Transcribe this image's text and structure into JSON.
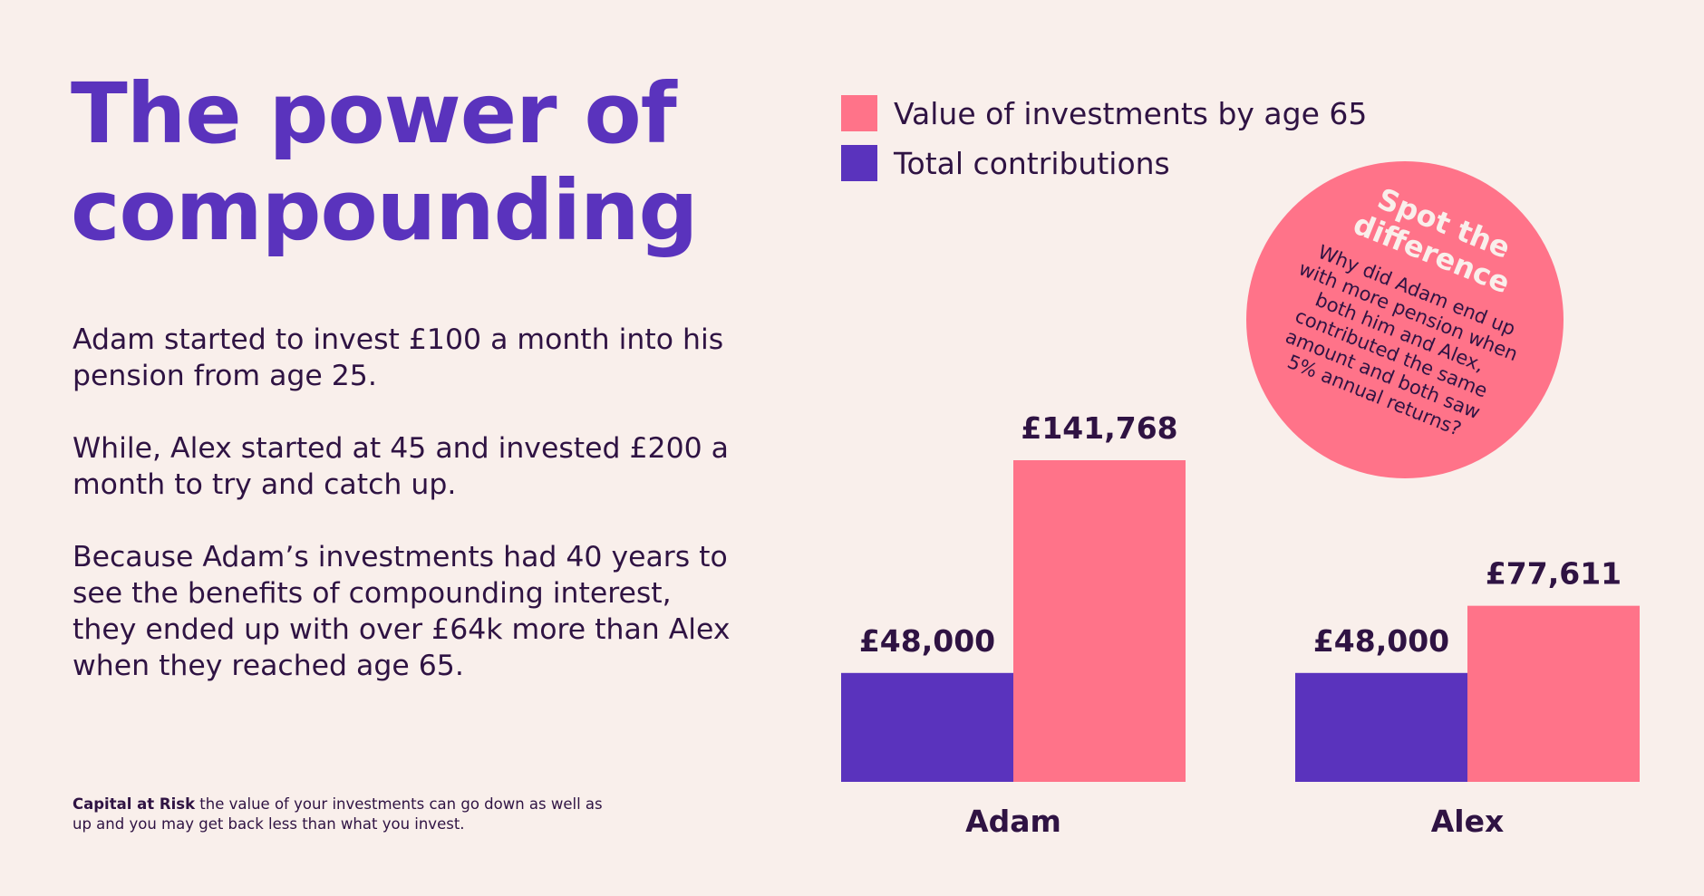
{
  "title": "The power of compounding",
  "paragraphs": [
    "Adam started to invest £100 a month into his pension from age 25.",
    "While, Alex started at 45 and invested £200 a month to try and catch up.",
    "Because Adam’s investments had 40 years to see the benefits of compounding interest, they ended up with over £64k more than Alex when they reached age 65."
  ],
  "disclaimer": {
    "bold": "Capital at Risk",
    "text": " the value of your investments can go down as well as up and you may get back less than what you invest."
  },
  "callout": {
    "heading": "Spot the difference",
    "body": "Why did Adam end up with more pension when both him and Alex, contributed the same amount and both saw 5% annual returns?"
  },
  "colors": {
    "background": "#f9efeb",
    "title": "#5a33bd",
    "text": "#2f1343",
    "contributions": "#5a33bd",
    "value": "#ff7389"
  },
  "chart_data": {
    "type": "bar",
    "categories": [
      "Adam",
      "Alex"
    ],
    "series": [
      {
        "name": "Total contributions",
        "values": [
          48000,
          48000
        ],
        "labels": [
          "£48,000",
          "£48,000"
        ],
        "color": "#5a33bd"
      },
      {
        "name": "Value of investments by age 65",
        "values": [
          141768,
          77611
        ],
        "labels": [
          "£141,768",
          "£77,611"
        ],
        "color": "#ff7389"
      }
    ],
    "legend": [
      {
        "label": "Value of investments by age 65",
        "color": "#ff7389"
      },
      {
        "label": "Total contributions",
        "color": "#5a33bd"
      }
    ],
    "legend_position": "top-left",
    "title": "",
    "xlabel": "",
    "ylabel": "",
    "ylim": [
      0,
      141768
    ],
    "grid": false
  }
}
